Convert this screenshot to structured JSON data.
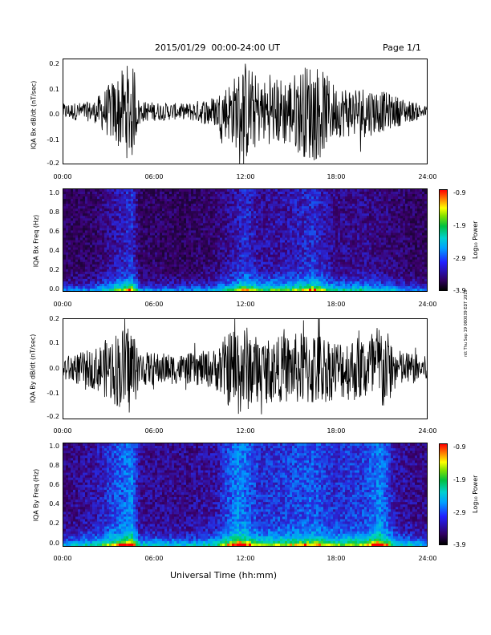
{
  "header": {
    "title": "2015/01/29  00:00-24:00 UT",
    "page": "Page 1/1"
  },
  "side_note": "ntt Thu Sep 19 080039 EDT 2019",
  "xlabel": "Universal Time (hh:mm)",
  "x_ticks": [
    "00:00",
    "06:00",
    "12:00",
    "18:00",
    "24:00"
  ],
  "colorbar": {
    "label": "Log₁₀ Power",
    "ticks": [
      "-0.9",
      "-1.9",
      "-2.9",
      "-3.9"
    ]
  },
  "chart_data": [
    {
      "type": "line",
      "title": "",
      "ylabel": "IQA Bx dB/dt (nT/sec)",
      "xlabel": "",
      "xlim": [
        "00:00",
        "24:00"
      ],
      "ylim": [
        -0.2,
        0.2
      ],
      "y_ticks": [
        "0.2",
        "0.1",
        "0.0",
        "-0.1",
        "-0.2"
      ],
      "series": [
        {
          "x": [
            "00:00",
            "02:00",
            "04:30",
            "05:00",
            "08:00",
            "10:00",
            "11:30",
            "12:00",
            "13:00",
            "15:00",
            "16:30",
            "18:00",
            "20:00",
            "22:00",
            "24:00"
          ],
          "envelope": [
            0.03,
            0.04,
            0.2,
            0.04,
            0.03,
            0.06,
            0.15,
            0.2,
            0.12,
            0.14,
            0.2,
            0.1,
            0.1,
            0.06,
            0.02
          ]
        }
      ]
    },
    {
      "type": "heatmap",
      "title": "",
      "ylabel": "IQA Bx Freq (Hz)",
      "xlim": [
        "00:00",
        "24:00"
      ],
      "ylim": [
        0.0,
        1.0
      ],
      "y_ticks": [
        "1.0",
        "0.8",
        "0.6",
        "0.4",
        "0.2",
        "0.0"
      ],
      "zlabel": "Log₁₀ Power",
      "zlim": [
        -3.9,
        -0.9
      ]
    },
    {
      "type": "line",
      "title": "",
      "ylabel": "IQA By dB/dt (nT/sec)",
      "xlim": [
        "00:00",
        "24:00"
      ],
      "ylim": [
        -0.2,
        0.2
      ],
      "y_ticks": [
        "0.2",
        "0.1",
        "0.0",
        "-0.1",
        "-0.2"
      ],
      "series": [
        {
          "x": [
            "00:00",
            "02:00",
            "04:30",
            "05:00",
            "08:00",
            "10:00",
            "11:30",
            "12:00",
            "13:00",
            "15:00",
            "16:30",
            "18:00",
            "20:00",
            "21:00",
            "22:00",
            "24:00"
          ],
          "envelope": [
            0.05,
            0.08,
            0.2,
            0.07,
            0.06,
            0.08,
            0.2,
            0.18,
            0.12,
            0.14,
            0.16,
            0.12,
            0.14,
            0.2,
            0.08,
            0.05
          ]
        }
      ]
    },
    {
      "type": "heatmap",
      "title": "",
      "ylabel": "IQA By Freq (Hz)",
      "xlim": [
        "00:00",
        "24:00"
      ],
      "ylim": [
        0.0,
        1.0
      ],
      "y_ticks": [
        "1.0",
        "0.8",
        "0.6",
        "0.4",
        "0.2",
        "0.0"
      ],
      "zlabel": "Log₁₀ Power",
      "zlim": [
        -3.9,
        -0.9
      ]
    }
  ]
}
